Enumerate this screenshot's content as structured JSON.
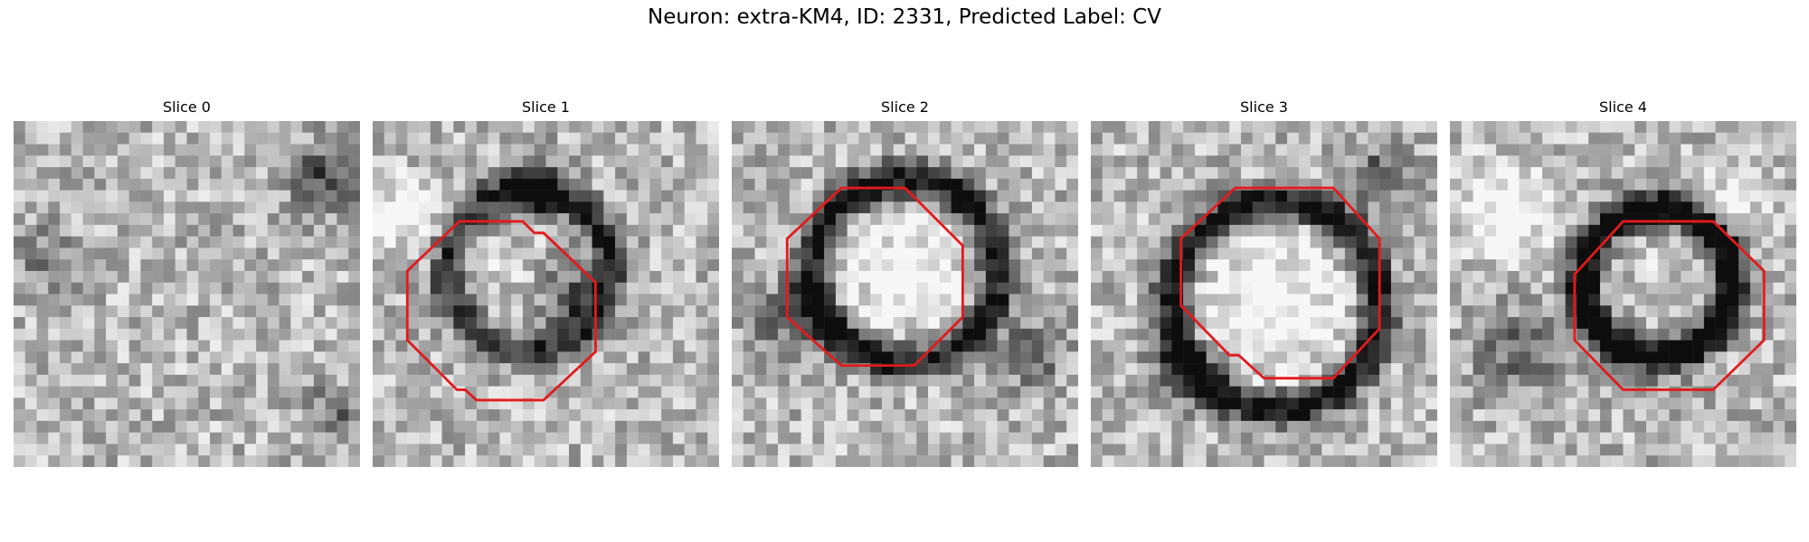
{
  "figure": {
    "title": "Neuron: extra-KM4, ID: 2331, Predicted Label: CV"
  },
  "panels": [
    {
      "title": "Slice 0",
      "has_contour": false,
      "image": "grayscale-em-patch",
      "contour_color": "#e31a1c"
    },
    {
      "title": "Slice 1",
      "has_contour": true,
      "image": "grayscale-em-patch",
      "contour_color": "#e31a1c"
    },
    {
      "title": "Slice 2",
      "has_contour": true,
      "image": "grayscale-em-patch",
      "contour_color": "#e31a1c"
    },
    {
      "title": "Slice 3",
      "has_contour": true,
      "image": "grayscale-em-patch",
      "contour_color": "#e31a1c"
    },
    {
      "title": "Slice 4",
      "has_contour": true,
      "image": "grayscale-em-patch",
      "contour_color": "#e31a1c"
    }
  ]
}
